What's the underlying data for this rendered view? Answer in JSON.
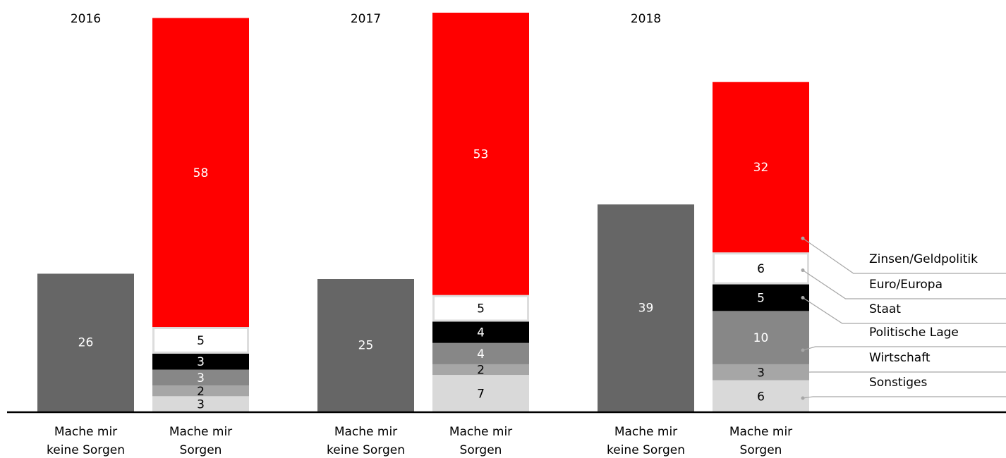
{
  "chart_data": {
    "type": "grouped_stacked_bar",
    "groups": [
      "2016",
      "2017",
      "2018"
    ],
    "bar_labels": [
      "Mache mir keine Sorgen",
      "Mache mir Sorgen"
    ],
    "no_worry": {
      "color": "#666666",
      "label_color": "#ffffff",
      "values": [
        26,
        25,
        39
      ]
    },
    "series": [
      {
        "name": "Sonstiges",
        "color": "#d9d9d9",
        "label_color": "#000000",
        "values": [
          3,
          7,
          6
        ]
      },
      {
        "name": "Wirtschaft",
        "color": "#a6a6a6",
        "label_color": "#000000",
        "values": [
          2,
          2,
          3
        ]
      },
      {
        "name": "Politische Lage",
        "color": "#878787",
        "label_color": "#ffffff",
        "values": [
          3,
          4,
          10
        ]
      },
      {
        "name": "Staat",
        "color": "#000000",
        "label_color": "#ffffff",
        "values": [
          3,
          4,
          5
        ]
      },
      {
        "name": "Euro/Europa",
        "color": "#ffffff",
        "label_color": "#000000",
        "values": [
          5,
          5,
          6
        ]
      },
      {
        "name": "Zinsen/Geldpolitik",
        "color": "#ff0000",
        "label_color": "#ffffff",
        "values": [
          58,
          53,
          32
        ]
      }
    ]
  }
}
